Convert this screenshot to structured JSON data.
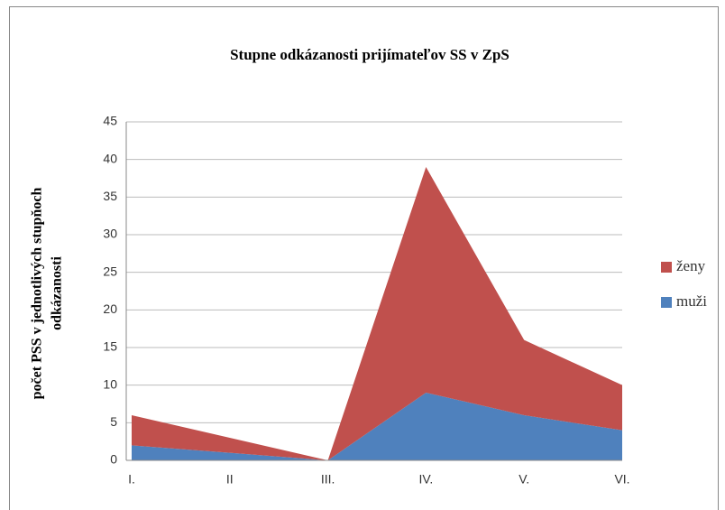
{
  "chart_data": {
    "type": "stacked_area",
    "title": "Stupne odkázanosti prijímateľov SS v ZpS",
    "ylabel": [
      "počet   PSS v jednotlivých stupňoch",
      "odkázanosti"
    ],
    "categories": [
      "I.",
      "II",
      "III.",
      "IV.",
      "V.",
      "VI."
    ],
    "series": [
      {
        "name": "muži",
        "color": "#4f81bd",
        "values": [
          2,
          1,
          0,
          9,
          6,
          4
        ]
      },
      {
        "name": "ženy",
        "color": "#c0504d",
        "values": [
          4,
          2,
          0,
          30,
          10,
          6
        ]
      }
    ],
    "ylim": [
      0,
      45
    ],
    "yticks": [
      0,
      5,
      10,
      15,
      20,
      25,
      30,
      35,
      40,
      45
    ],
    "grid": true,
    "legend": "right"
  }
}
